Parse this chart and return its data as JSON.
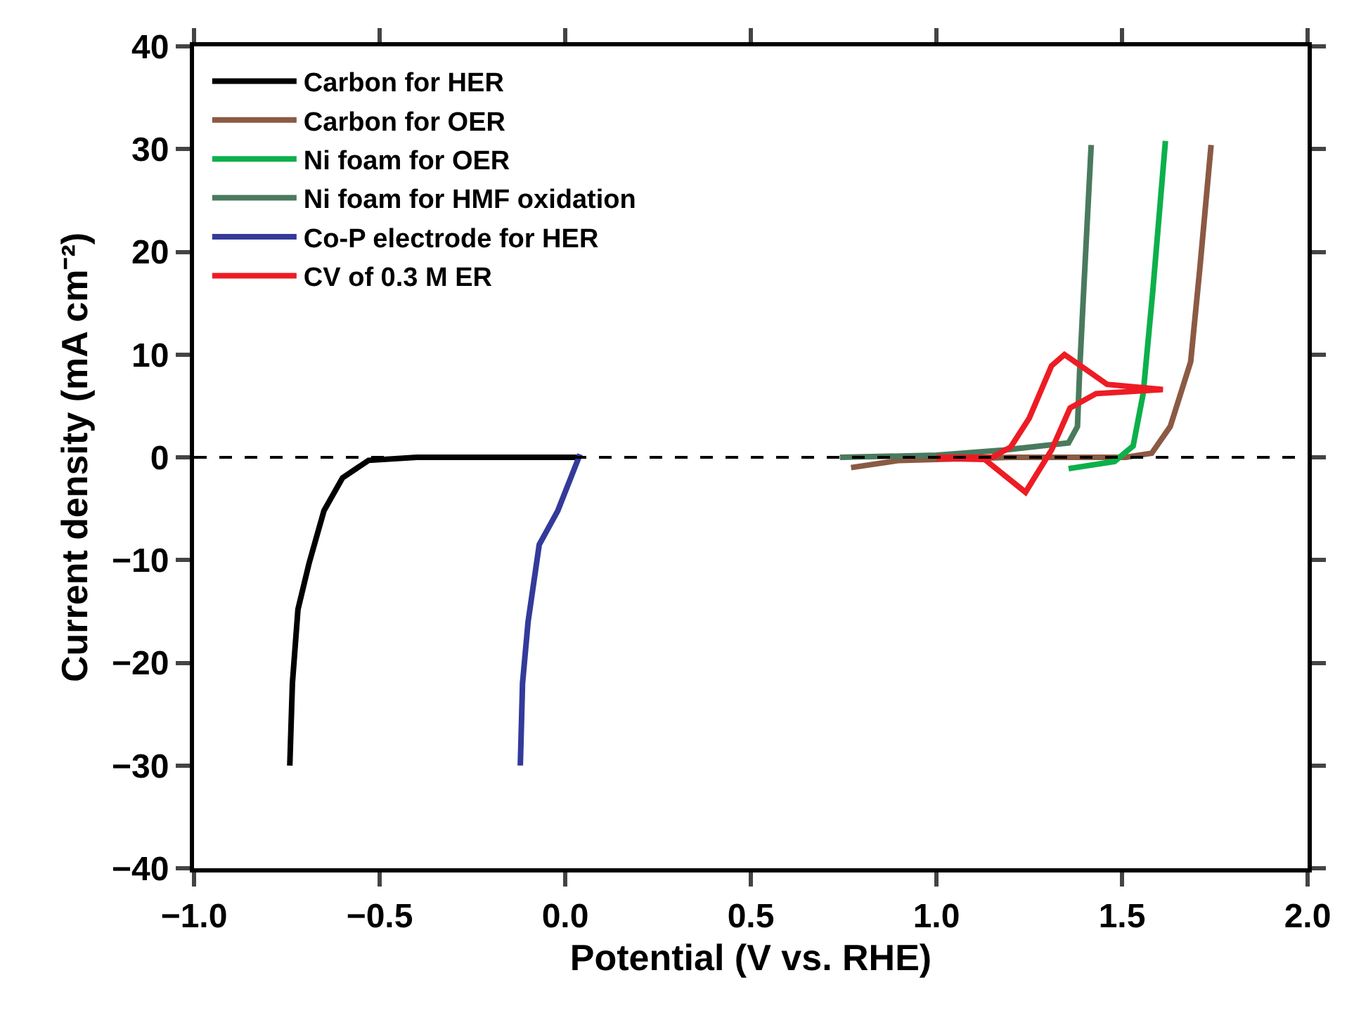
{
  "chart_data": {
    "type": "line",
    "xlabel": "Potential (V vs. RHE)",
    "ylabel": "Current density (mA cm⁻²)",
    "xlim": [
      -1,
      2
    ],
    "ylim": [
      -40,
      40
    ],
    "xticks": [
      {
        "value": -1,
        "label": "−1.0"
      },
      {
        "value": -0.5,
        "label": "−0.5"
      },
      {
        "value": 0,
        "label": "0.0"
      },
      0.5,
      {
        "value": 1,
        "label": "1.0"
      },
      1.5,
      {
        "value": 2,
        "label": "2.0"
      }
    ],
    "yticks": [
      {
        "value": -40,
        "label": "−40"
      },
      {
        "value": -30,
        "label": "−30"
      },
      {
        "value": -20,
        "label": "−20"
      },
      {
        "value": -10,
        "label": "−10"
      },
      0,
      10,
      20,
      30,
      40
    ],
    "grid": false,
    "legend": "top left",
    "marker": "none",
    "line_style": "solid",
    "ref_lines": [
      {
        "axis": "y",
        "value": 0,
        "color": "#000000",
        "line_style": "dashed"
      }
    ],
    "series": [
      {
        "name": "Carbon for HER",
        "color": "#000000",
        "x": [
          -0.742,
          -0.735,
          -0.72,
          -0.69,
          -0.65,
          -0.6,
          -0.53,
          -0.4,
          -0.2,
          0.04
        ],
        "values": [
          -30,
          -22,
          -14.8,
          -10.3,
          -5.2,
          -2,
          -0.3,
          0,
          0,
          0
        ]
      },
      {
        "name": "Carbon for OER",
        "color": "#8b5a44",
        "x": [
          0.77,
          0.9,
          1.2,
          1.51,
          1.58,
          1.63,
          1.685,
          1.71,
          1.74
        ],
        "values": [
          -1,
          -0.3,
          0,
          0,
          0.4,
          3,
          9.3,
          18.5,
          30.4
        ]
      },
      {
        "name": "Ni foam for OER",
        "color": "#0db04b",
        "x": [
          1.356,
          1.48,
          1.53,
          1.557,
          1.583,
          1.617
        ],
        "values": [
          -1.1,
          -0.4,
          1.1,
          6.2,
          16.2,
          30.8
        ]
      },
      {
        "name": "Ni foam for HMF oxidation",
        "color": "#4a7a5e",
        "x": [
          0.74,
          1.0,
          1.18,
          1.356,
          1.38,
          1.386,
          1.395,
          1.417
        ],
        "values": [
          0,
          0.2,
          0.7,
          1.4,
          3,
          8.5,
          15,
          30.4
        ]
      },
      {
        "name": "Co-P electrode for HER",
        "color": "#333a9a",
        "x": [
          -0.121,
          -0.115,
          -0.1,
          -0.07,
          -0.02,
          0.04
        ],
        "values": [
          -30,
          -22,
          -16,
          -8.5,
          -5.2,
          0.3
        ]
      },
      {
        "name": "CV of 0.3 M ER",
        "color": "#ed1c24",
        "x": [
          1.0,
          1.15,
          1.2,
          1.25,
          1.31,
          1.345,
          1.405,
          1.46,
          1.61,
          1.43,
          1.36,
          1.31,
          1.24,
          1.13,
          1.0
        ],
        "values": [
          0,
          0,
          1.0,
          3.8,
          8.9,
          10,
          8.5,
          7.1,
          6.6,
          6.2,
          4.8,
          0.7,
          -3.4,
          -0.2,
          -0.1
        ]
      }
    ]
  }
}
